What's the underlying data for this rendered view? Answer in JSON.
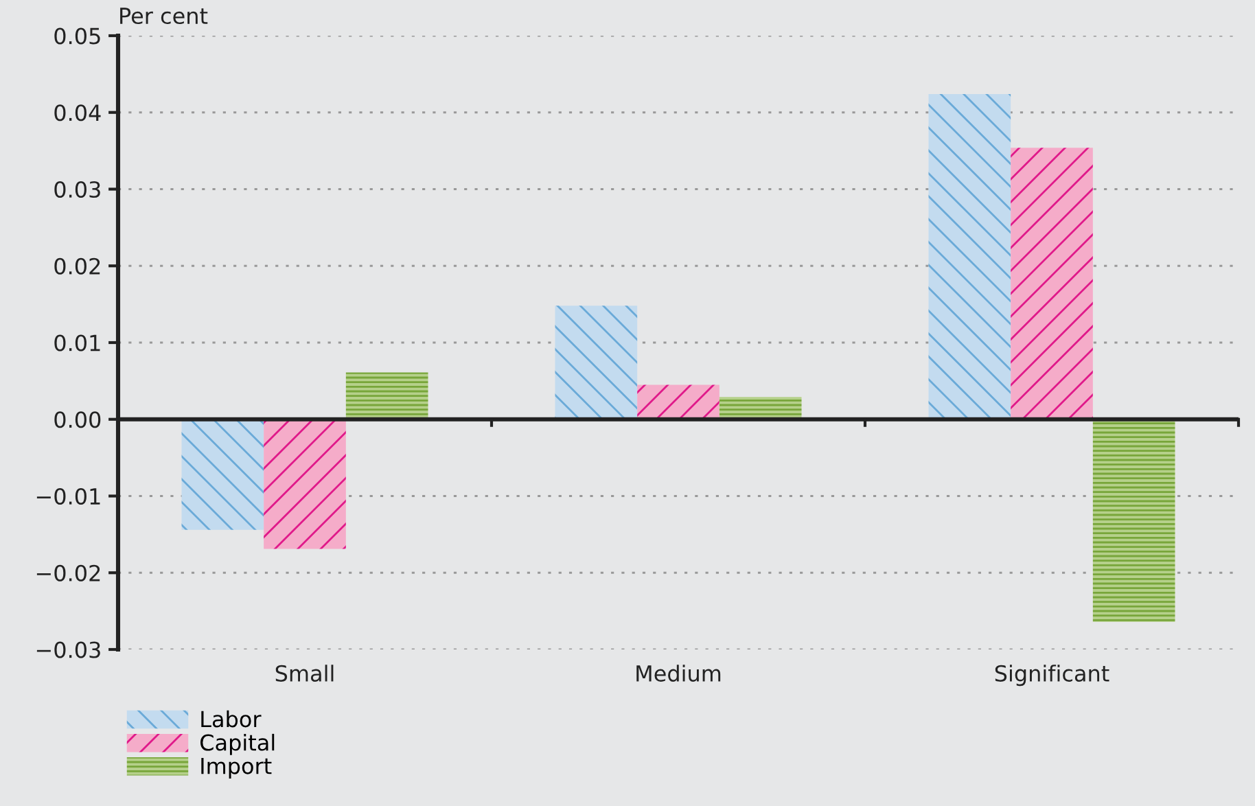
{
  "chart_data": {
    "type": "bar",
    "ylabel": "Per cent",
    "categories": [
      "Small",
      "Medium",
      "Significant"
    ],
    "series": [
      {
        "name": "Labor",
        "color": "#c3dbef",
        "values": [
          -0.0144,
          0.0148,
          0.0424
        ]
      },
      {
        "name": "Capital",
        "color": "#f5acc9",
        "values": [
          -0.0169,
          0.0045,
          0.0354
        ]
      },
      {
        "name": "Import",
        "color": "#b5d08a",
        "values": [
          0.0061,
          0.0029,
          -0.0264
        ]
      }
    ],
    "ylim": [
      -0.03,
      0.05
    ],
    "yticks": [
      {
        "value": -0.03,
        "label": "−0.03"
      },
      {
        "value": -0.02,
        "label": "−0.02"
      },
      {
        "value": -0.01,
        "label": "−0.01"
      },
      {
        "value": 0,
        "label": "0.00"
      },
      {
        "value": 0.01,
        "label": "0.01"
      },
      {
        "value": 0.02,
        "label": "0.02"
      },
      {
        "value": 0.03,
        "label": "0.03"
      },
      {
        "value": 0.04,
        "label": "0.04"
      },
      {
        "value": 0.05,
        "label": "0.05"
      }
    ],
    "grid": "y",
    "legend": "bottom left"
  }
}
